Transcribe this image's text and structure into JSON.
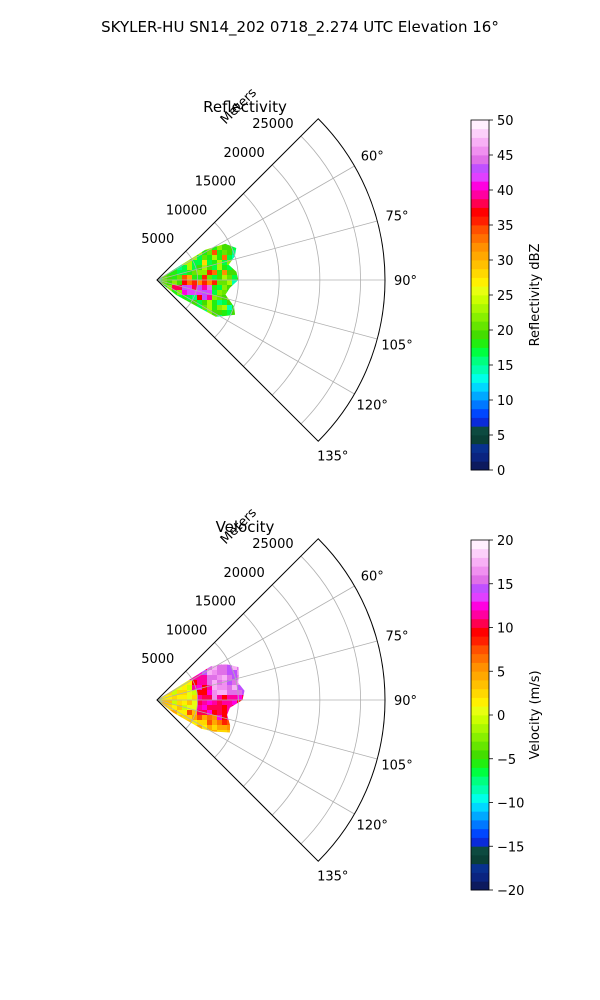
{
  "suptitle": "SKYLER-HU  SN14_202  0718_2.274 UTC Elevation 16°",
  "chart_data": [
    {
      "type": "heatmap",
      "projection": "polar-sector",
      "title": "Reflectivity",
      "radial_axis_label": "Meters",
      "r_ticks": [
        5000,
        10000,
        15000,
        20000,
        25000
      ],
      "r_tick_labels": [
        "5000",
        "10000",
        "15000",
        "20000",
        "25000"
      ],
      "rlim": [
        0,
        28000
      ],
      "theta_range_deg": [
        45,
        135
      ],
      "theta_ticks": [
        60,
        75,
        90,
        105,
        120,
        135
      ],
      "theta_tick_labels": [
        "60°",
        "75°",
        "90°",
        "105°",
        "120°",
        "135°"
      ],
      "grid": true,
      "colorbar": {
        "label": "Reflectivity dBZ",
        "range": [
          0,
          50
        ],
        "ticks": [
          0,
          5,
          10,
          15,
          20,
          25,
          30,
          35,
          40,
          45,
          50
        ],
        "tick_labels": [
          "0",
          "5",
          "10",
          "15",
          "20",
          "25",
          "30",
          "35",
          "40",
          "45",
          "50"
        ],
        "levels": 40,
        "colormap": [
          "#0c1a5e",
          "#0a2480",
          "#08308f",
          "#0a3f36",
          "#0d4a40",
          "#0a2bd9",
          "#0047ff",
          "#0078ff",
          "#00a8ff",
          "#00d8ff",
          "#00ffe8",
          "#00ffb0",
          "#00ff80",
          "#00ff40",
          "#22ee10",
          "#44dd00",
          "#66e600",
          "#88f000",
          "#aaf800",
          "#ccff00",
          "#e8ff10",
          "#fff000",
          "#ffd800",
          "#ffc000",
          "#ffa800",
          "#ff9000",
          "#ff7000",
          "#ff5000",
          "#ff2000",
          "#ff0000",
          "#ff0050",
          "#ff00a0",
          "#ff00e0",
          "#e040ff",
          "#c050ff",
          "#e070e8",
          "#f090f0",
          "#f8b0f6",
          "#fcd0fa",
          "#fff0fd"
        ]
      }
    },
    {
      "type": "heatmap",
      "projection": "polar-sector",
      "title": "Velocity",
      "radial_axis_label": "Meters",
      "r_ticks": [
        5000,
        10000,
        15000,
        20000,
        25000
      ],
      "r_tick_labels": [
        "5000",
        "10000",
        "15000",
        "20000",
        "25000"
      ],
      "rlim": [
        0,
        28000
      ],
      "theta_range_deg": [
        45,
        135
      ],
      "theta_ticks": [
        60,
        75,
        90,
        105,
        120,
        135
      ],
      "theta_tick_labels": [
        "60°",
        "75°",
        "90°",
        "105°",
        "120°",
        "135°"
      ],
      "grid": true,
      "colorbar": {
        "label": "Velocity (m/s)",
        "range": [
          -20,
          20
        ],
        "ticks": [
          -20,
          -15,
          -10,
          -5,
          0,
          5,
          10,
          15,
          20
        ],
        "tick_labels": [
          "−20",
          "−15",
          "−10",
          "−5",
          "0",
          "5",
          "10",
          "15",
          "20"
        ],
        "levels": 40,
        "colormap": [
          "#0c1a5e",
          "#0a2480",
          "#08308f",
          "#0a3f36",
          "#0d4a40",
          "#0a2bd9",
          "#0047ff",
          "#0078ff",
          "#00a8ff",
          "#00d8ff",
          "#00ffe8",
          "#00ffb0",
          "#00ff80",
          "#00ff40",
          "#22ee10",
          "#44dd00",
          "#66e600",
          "#88f000",
          "#aaf800",
          "#ccff00",
          "#e8ff10",
          "#fff000",
          "#ffd800",
          "#ffc000",
          "#ffa800",
          "#ff9000",
          "#ff7000",
          "#ff5000",
          "#ff2000",
          "#ff0000",
          "#ff0050",
          "#ff00a0",
          "#ff00e0",
          "#e040ff",
          "#c050ff",
          "#e070e8",
          "#f090f0",
          "#f8b0f6",
          "#fcd0fa",
          "#fff0fd"
        ]
      }
    }
  ]
}
